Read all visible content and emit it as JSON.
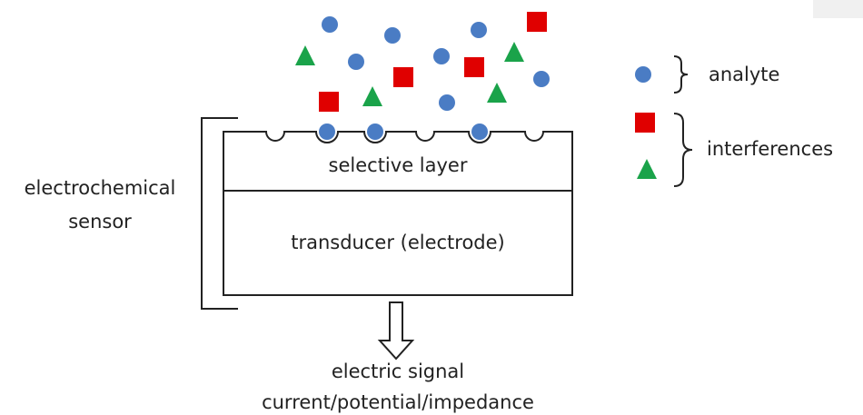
{
  "sensor_label": [
    "electrochemical",
    "sensor"
  ],
  "layers": {
    "selective": "selective layer",
    "transducer": "transducer (electrode)"
  },
  "legend": {
    "analyte": "analyte",
    "interferences": "interferences"
  },
  "output": [
    "electric signal",
    "current/potential/impedance"
  ]
}
